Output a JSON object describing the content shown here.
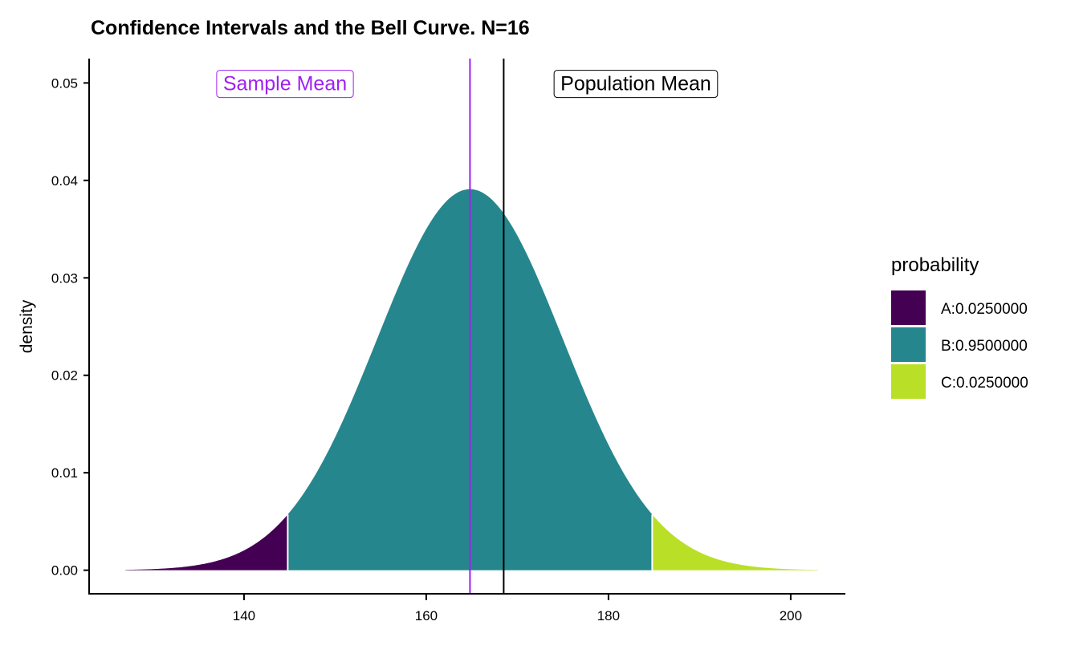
{
  "chart_data": {
    "type": "area",
    "title": "Confidence Intervals and the Bell Curve. N=16",
    "xlabel": "",
    "ylabel": "density",
    "xlim": [
      123,
      206
    ],
    "ylim": [
      -0.0025,
      0.0525
    ],
    "x_ticks": [
      140,
      160,
      180,
      200
    ],
    "x_tick_labels": [
      "140",
      "160",
      "180",
      "200"
    ],
    "y_ticks": [
      0,
      0.01,
      0.02,
      0.03,
      0.04,
      0.05
    ],
    "y_tick_labels": [
      "0.00",
      "0.01",
      "0.02",
      "0.03",
      "0.04",
      "0.05"
    ],
    "distribution": {
      "family": "normal",
      "mean": 164.8,
      "sd": 10.2,
      "x_range": [
        127,
        203
      ],
      "peak_density": 0.0391
    },
    "regions": [
      {
        "label": "A:0.0250000",
        "probability": 0.025,
        "x_from": 127,
        "x_to": 144.8,
        "color": "#440154"
      },
      {
        "label": "B:0.9500000",
        "probability": 0.95,
        "x_from": 144.8,
        "x_to": 184.8,
        "color": "#26868D"
      },
      {
        "label": "C:0.0250000",
        "probability": 0.025,
        "x_from": 184.8,
        "x_to": 203,
        "color": "#BADF27"
      }
    ],
    "vlines": [
      {
        "name": "Sample Mean",
        "x": 164.8,
        "color": "#A020F0"
      },
      {
        "name": "Population Mean",
        "x": 168.5,
        "color": "#000000"
      }
    ],
    "annotations": [
      {
        "text": "Sample Mean",
        "x": 144.5,
        "y": 0.0499,
        "color": "#A020F0"
      },
      {
        "text": "Population Mean",
        "x": 183.0,
        "y": 0.0499,
        "color": "#000000"
      }
    ],
    "legend": {
      "title": "probability",
      "position": "right"
    },
    "grid": false
  }
}
